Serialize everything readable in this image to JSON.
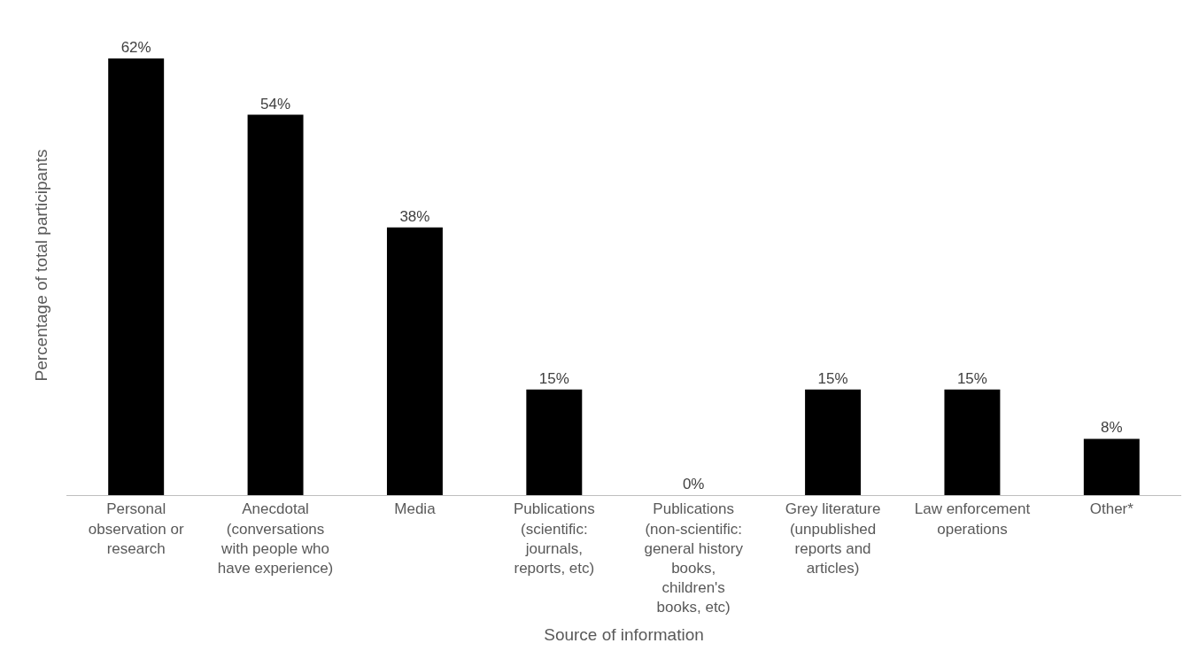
{
  "chart_data": {
    "type": "bar",
    "xlabel": "Source of information",
    "ylabel": "Percentage of total participants",
    "categories": [
      "Personal observation or research",
      "Anecdotal (conversations with people who have experience)",
      "Media",
      "Publications (scientific: journals, reports, etc)",
      "Publications (non-scientific: general history books, children's books, etc)",
      "Grey literature (unpublished reports and articles)",
      "Law enforcement operations",
      "Other*"
    ],
    "values": [
      62,
      54,
      38,
      15,
      0,
      15,
      15,
      8
    ],
    "value_labels": [
      "62%",
      "54%",
      "38%",
      "15%",
      "0%",
      "15%",
      "15%",
      "8%"
    ],
    "color": "#000000"
  }
}
